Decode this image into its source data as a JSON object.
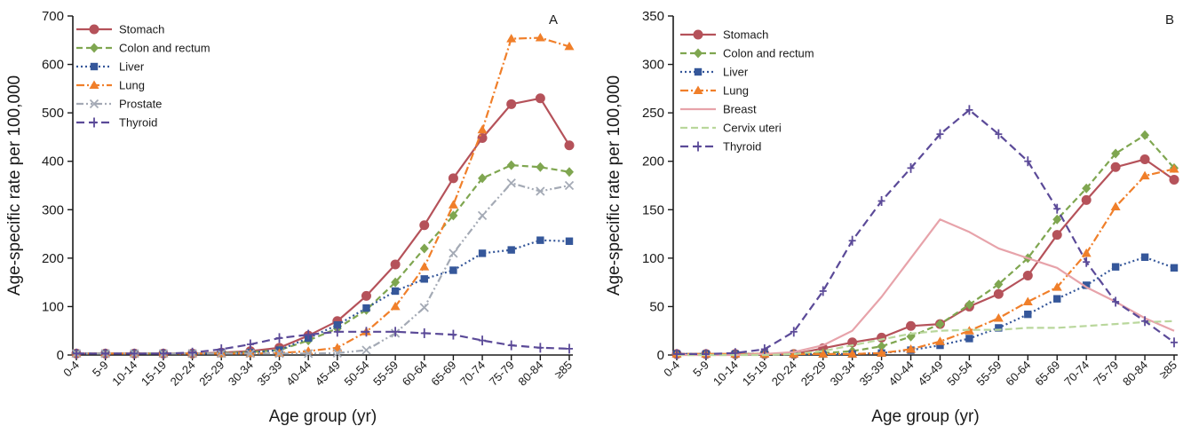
{
  "chart_data": [
    {
      "type": "line",
      "panel_label": "A",
      "xlabel": "Age group (yr)",
      "ylabel": "Age-specific rate per 100,000",
      "ylim": [
        0,
        700
      ],
      "yticks": [
        0,
        100,
        200,
        300,
        400,
        500,
        600,
        700
      ],
      "categories": [
        "0-4",
        "5-9",
        "10-14",
        "15-19",
        "20-24",
        "25-29",
        "30-34",
        "35-39",
        "40-44",
        "45-49",
        "50-54",
        "55-59",
        "60-64",
        "65-69",
        "70-74",
        "75-79",
        "80-84",
        "≥85"
      ],
      "grid": false,
      "legend_position": "top-left",
      "series": [
        {
          "name": "Stomach",
          "color": "#b5525a",
          "dash": "",
          "marker": "circle",
          "values": [
            3,
            3,
            3,
            3,
            3,
            5,
            8,
            15,
            40,
            70,
            122,
            187,
            268,
            365,
            448,
            518,
            530,
            433
          ]
        },
        {
          "name": "Colon and rectum",
          "color": "#7fa650",
          "dash": "7,4",
          "marker": "diamond",
          "values": [
            3,
            3,
            3,
            3,
            3,
            4,
            6,
            10,
            30,
            55,
            93,
            150,
            220,
            288,
            365,
            392,
            388,
            378
          ]
        },
        {
          "name": "Liver",
          "color": "#35579a",
          "dash": "2,3",
          "marker": "square",
          "values": [
            3,
            3,
            3,
            3,
            3,
            3,
            5,
            10,
            35,
            62,
            97,
            132,
            157,
            175,
            210,
            217,
            237,
            235
          ]
        },
        {
          "name": "Lung",
          "color": "#f07f2a",
          "dash": "9,3,2,3",
          "marker": "triangle",
          "values": [
            3,
            3,
            3,
            3,
            3,
            3,
            3,
            4,
            8,
            15,
            48,
            100,
            182,
            310,
            465,
            653,
            655,
            637
          ]
        },
        {
          "name": "Prostate",
          "color": "#a4aab5",
          "dash": "8,3,2,3,2,3",
          "marker": "x",
          "values": [
            3,
            3,
            3,
            3,
            3,
            3,
            3,
            3,
            3,
            4,
            10,
            45,
            98,
            210,
            288,
            355,
            338,
            350
          ]
        },
        {
          "name": "Thyroid",
          "color": "#5b4a98",
          "dash": "9,5",
          "marker": "plus",
          "values": [
            3,
            3,
            3,
            3,
            5,
            12,
            22,
            35,
            42,
            48,
            48,
            48,
            45,
            42,
            30,
            20,
            15,
            13
          ]
        }
      ]
    },
    {
      "type": "line",
      "panel_label": "B",
      "xlabel": "Age group (yr)",
      "ylabel": "Age-specific rate per 100,000",
      "ylim": [
        0,
        350
      ],
      "yticks": [
        0,
        50,
        100,
        150,
        200,
        250,
        300,
        350
      ],
      "categories": [
        "0-4",
        "5-9",
        "10-14",
        "15-19",
        "20-24",
        "25-29",
        "30-34",
        "35-39",
        "40-44",
        "45-49",
        "50-54",
        "55-59",
        "60-64",
        "65-69",
        "70-74",
        "75-79",
        "80-84",
        "≥85"
      ],
      "grid": false,
      "legend_position": "top-left",
      "series": [
        {
          "name": "Stomach",
          "color": "#b5525a",
          "dash": "",
          "marker": "circle",
          "values": [
            1,
            1,
            1,
            1,
            1,
            7,
            13,
            18,
            30,
            32,
            50,
            63,
            82,
            124,
            160,
            194,
            202,
            181
          ]
        },
        {
          "name": "Colon and rectum",
          "color": "#7fa650",
          "dash": "7,4",
          "marker": "diamond",
          "values": [
            1,
            1,
            1,
            1,
            1,
            2,
            4,
            9,
            19,
            32,
            52,
            73,
            100,
            140,
            172,
            208,
            227,
            193
          ]
        },
        {
          "name": "Liver",
          "color": "#35579a",
          "dash": "2,3",
          "marker": "square",
          "values": [
            1,
            1,
            1,
            1,
            1,
            1,
            1,
            2,
            5,
            10,
            17,
            28,
            42,
            58,
            72,
            91,
            101,
            90
          ]
        },
        {
          "name": "Lung",
          "color": "#f07f2a",
          "dash": "9,3,2,3",
          "marker": "triangle",
          "values": [
            1,
            1,
            1,
            1,
            1,
            1,
            1,
            2,
            6,
            14,
            25,
            38,
            55,
            70,
            105,
            153,
            185,
            192
          ]
        },
        {
          "name": "Breast",
          "color": "#e7a3aa",
          "dash": "",
          "marker": "none",
          "values": [
            0,
            0,
            0,
            1,
            3,
            10,
            25,
            60,
            100,
            140,
            127,
            110,
            100,
            90,
            70,
            55,
            38,
            25
          ]
        },
        {
          "name": "Cervix uteri",
          "color": "#b9d79c",
          "dash": "8,4",
          "marker": "none",
          "values": [
            0,
            0,
            0,
            0,
            1,
            4,
            10,
            16,
            22,
            25,
            26,
            26,
            28,
            28,
            30,
            32,
            34,
            35
          ]
        },
        {
          "name": "Thyroid",
          "color": "#5b4a98",
          "dash": "9,5",
          "marker": "plus",
          "values": [
            1,
            1,
            2,
            6,
            24,
            66,
            118,
            159,
            193,
            228,
            253,
            228,
            200,
            151,
            96,
            55,
            35,
            13
          ]
        }
      ]
    }
  ]
}
